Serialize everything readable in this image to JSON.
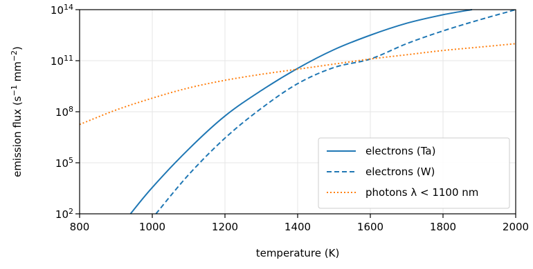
{
  "chart_data": {
    "type": "line",
    "xlabel": "temperature (K)",
    "ylabel": {
      "text": "emission flux (s",
      "sup1": "−1",
      "mid": " mm",
      "sup2": "−2",
      "end": ")"
    },
    "xlim": [
      800,
      2000
    ],
    "ylim_log10": [
      2,
      14
    ],
    "y_scale": "log",
    "grid": true,
    "legend_position": "lower-right",
    "x_ticks": [
      {
        "value": 800,
        "label": "800"
      },
      {
        "value": 1000,
        "label": "1000"
      },
      {
        "value": 1200,
        "label": "1200"
      },
      {
        "value": 1400,
        "label": "1400"
      },
      {
        "value": 1600,
        "label": "1600"
      },
      {
        "value": 1800,
        "label": "1800"
      },
      {
        "value": 2000,
        "label": "2000"
      }
    ],
    "y_ticks": [
      {
        "exp": 2,
        "base": "10",
        "sup": "2"
      },
      {
        "exp": 5,
        "base": "10",
        "sup": "5"
      },
      {
        "exp": 8,
        "base": "10",
        "sup": "8"
      },
      {
        "exp": 11,
        "base": "10",
        "sup": "11"
      },
      {
        "exp": 14,
        "base": "10",
        "sup": "14"
      }
    ],
    "series": [
      {
        "name": "electrons (Ta)",
        "color": "#1f77b4",
        "style": "solid",
        "x": [
          940,
          1000,
          1100,
          1200,
          1300,
          1400,
          1500,
          1600,
          1700,
          1800,
          1880
        ],
        "y_log10": [
          2.0,
          3.55,
          5.8,
          7.75,
          9.25,
          10.55,
          11.65,
          12.5,
          13.2,
          13.7,
          14.0
        ]
      },
      {
        "name": "electrons (W)",
        "color": "#1f77b4",
        "style": "dashed",
        "x": [
          1010,
          1100,
          1200,
          1300,
          1400,
          1500,
          1600,
          1700,
          1800,
          1900,
          2000
        ],
        "y_log10": [
          2.0,
          4.3,
          6.45,
          8.2,
          9.65,
          10.6,
          11.1,
          12.0,
          12.75,
          13.4,
          14.0
        ]
      },
      {
        "name": "photons λ < 1100 nm",
        "color": "#ff7f0e",
        "style": "dotted",
        "x": [
          800,
          900,
          1000,
          1100,
          1200,
          1300,
          1400,
          1500,
          1600,
          1700,
          1800,
          1900,
          2000
        ],
        "y_log10": [
          7.25,
          8.1,
          8.8,
          9.4,
          9.85,
          10.2,
          10.5,
          10.8,
          11.1,
          11.35,
          11.6,
          11.8,
          12.0
        ]
      }
    ]
  }
}
